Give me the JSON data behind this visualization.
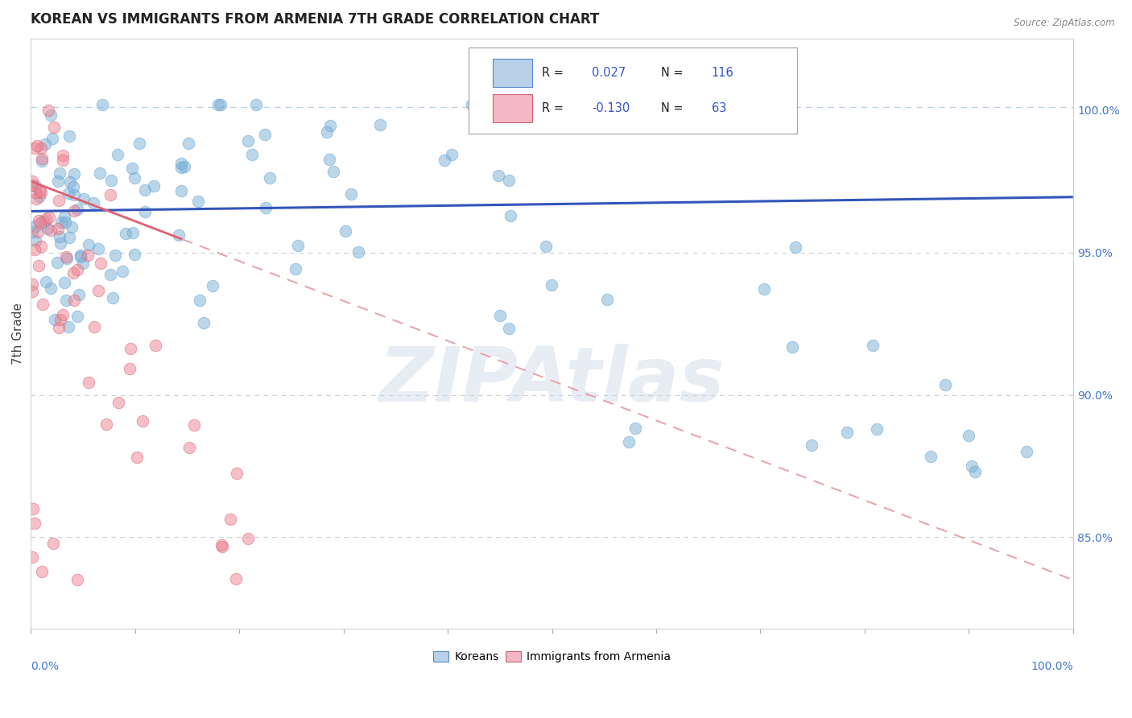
{
  "title": "KOREAN VS IMMIGRANTS FROM ARMENIA 7TH GRADE CORRELATION CHART",
  "source": "Source: ZipAtlas.com",
  "ylabel": "7th Grade",
  "watermark": "ZIPAtlas",
  "korean_color": "#7bafd4",
  "korean_edge": "#5a9fd4",
  "armenia_color": "#f08090",
  "armenia_edge": "#d06070",
  "trend_korean_color": "#3355bb",
  "trend_armenia_solid_color": "#e06070",
  "trend_dashed_color": "#e8a0a8",
  "legend_box_color": "#cccccc",
  "legend_fill": "#ffffff",
  "ytick_color": "#4477cc",
  "xtick_label_color": "#4477cc",
  "title_color": "#222222",
  "title_fontsize": 12,
  "background_color": "#ffffff",
  "xlim": [
    0.0,
    1.0
  ],
  "ylim": [
    0.818,
    1.025
  ],
  "yticks": [
    0.85,
    0.9,
    0.95,
    1.0
  ],
  "ytick_labels": [
    "85.0%",
    "90.0%",
    "95.0%",
    "100.0%"
  ]
}
